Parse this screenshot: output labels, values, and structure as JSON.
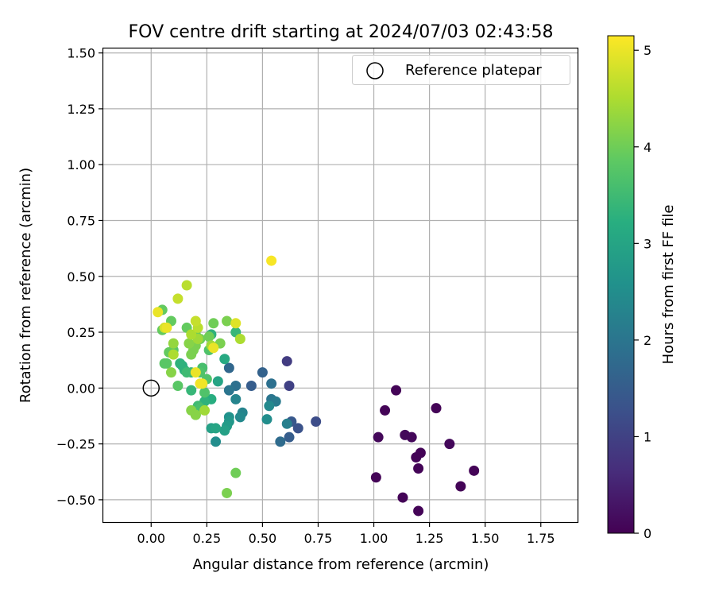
{
  "chart_data": {
    "type": "scatter",
    "title": "FOV centre drift starting at 2024/07/03 02:43:58",
    "xlabel": "Angular distance from reference (arcmin)",
    "ylabel": "Rotation from reference (arcmin)",
    "xlim": [
      -0.215,
      1.915
    ],
    "ylim": [
      -0.6,
      1.52
    ],
    "xticks": [
      0.0,
      0.25,
      0.5,
      0.75,
      1.0,
      1.25,
      1.5,
      1.75
    ],
    "xtick_labels": [
      "0.00",
      "0.25",
      "0.50",
      "0.75",
      "1.00",
      "1.25",
      "1.50",
      "1.75"
    ],
    "yticks": [
      -0.5,
      -0.25,
      0.0,
      0.25,
      0.5,
      0.75,
      1.0,
      1.25,
      1.5
    ],
    "ytick_labels": [
      "−0.50",
      "−0.25",
      "0.00",
      "0.25",
      "0.50",
      "0.75",
      "1.00",
      "1.25",
      "1.50"
    ],
    "grid": true,
    "legend": {
      "position": "top-right",
      "label": "Reference platepar"
    },
    "reference_point": {
      "x": 0.0,
      "y": 0.0
    },
    "colorbar": {
      "label": "Hours from first FF file",
      "colormap": "viridis",
      "range": [
        0,
        5.15
      ],
      "ticks": [
        0,
        1,
        2,
        3,
        4,
        5
      ],
      "tick_labels": [
        "0",
        "1",
        "2",
        "3",
        "4",
        "5"
      ]
    },
    "points": [
      {
        "x": 1.1,
        "y": -0.01,
        "h": 0.05
      },
      {
        "x": 1.05,
        "y": -0.1,
        "h": 0.05
      },
      {
        "x": 1.28,
        "y": -0.09,
        "h": 0.05
      },
      {
        "x": 1.02,
        "y": -0.22,
        "h": 0.1
      },
      {
        "x": 1.14,
        "y": -0.21,
        "h": 0.1
      },
      {
        "x": 1.17,
        "y": -0.22,
        "h": 0.1
      },
      {
        "x": 1.19,
        "y": -0.31,
        "h": 0.05
      },
      {
        "x": 1.21,
        "y": -0.29,
        "h": 0.05
      },
      {
        "x": 1.34,
        "y": -0.25,
        "h": 0.1
      },
      {
        "x": 1.2,
        "y": -0.36,
        "h": 0.05
      },
      {
        "x": 1.01,
        "y": -0.4,
        "h": 0.05
      },
      {
        "x": 1.13,
        "y": -0.49,
        "h": 0.05
      },
      {
        "x": 1.2,
        "y": -0.55,
        "h": 0.05
      },
      {
        "x": 1.39,
        "y": -0.44,
        "h": 0.05
      },
      {
        "x": 1.45,
        "y": -0.37,
        "h": 0.05
      },
      {
        "x": 0.61,
        "y": 0.12,
        "h": 0.9
      },
      {
        "x": 0.62,
        "y": 0.01,
        "h": 1.0
      },
      {
        "x": 0.74,
        "y": -0.15,
        "h": 1.2
      },
      {
        "x": 0.66,
        "y": -0.18,
        "h": 1.3
      },
      {
        "x": 0.63,
        "y": -0.15,
        "h": 1.4
      },
      {
        "x": 0.62,
        "y": -0.22,
        "h": 1.5
      },
      {
        "x": 0.58,
        "y": -0.24,
        "h": 1.8
      },
      {
        "x": 0.5,
        "y": 0.07,
        "h": 1.6
      },
      {
        "x": 0.45,
        "y": 0.01,
        "h": 1.5
      },
      {
        "x": 0.35,
        "y": 0.09,
        "h": 1.7
      },
      {
        "x": 0.38,
        "y": 0.01,
        "h": 1.9
      },
      {
        "x": 0.35,
        "y": -0.01,
        "h": 2.0
      },
      {
        "x": 0.54,
        "y": 0.02,
        "h": 1.9
      },
      {
        "x": 0.54,
        "y": -0.05,
        "h": 2.0
      },
      {
        "x": 0.56,
        "y": -0.06,
        "h": 2.1
      },
      {
        "x": 0.53,
        "y": -0.08,
        "h": 2.4
      },
      {
        "x": 0.52,
        "y": -0.14,
        "h": 2.5
      },
      {
        "x": 0.61,
        "y": -0.16,
        "h": 2.2
      },
      {
        "x": 0.38,
        "y": -0.05,
        "h": 2.3
      },
      {
        "x": 0.41,
        "y": -0.11,
        "h": 2.3
      },
      {
        "x": 0.4,
        "y": -0.13,
        "h": 2.4
      },
      {
        "x": 0.35,
        "y": -0.13,
        "h": 2.6
      },
      {
        "x": 0.35,
        "y": -0.15,
        "h": 2.7
      },
      {
        "x": 0.34,
        "y": -0.17,
        "h": 2.8
      },
      {
        "x": 0.33,
        "y": -0.19,
        "h": 2.9
      },
      {
        "x": 0.29,
        "y": -0.24,
        "h": 2.5
      },
      {
        "x": 0.27,
        "y": -0.18,
        "h": 2.9
      },
      {
        "x": 0.29,
        "y": -0.18,
        "h": 3.0
      },
      {
        "x": 0.33,
        "y": 0.13,
        "h": 3.1
      },
      {
        "x": 0.3,
        "y": 0.03,
        "h": 3.0
      },
      {
        "x": 0.27,
        "y": -0.05,
        "h": 3.2
      },
      {
        "x": 0.24,
        "y": -0.06,
        "h": 3.3
      },
      {
        "x": 0.27,
        "y": 0.24,
        "h": 3.3
      },
      {
        "x": 0.38,
        "y": 0.25,
        "h": 3.4
      },
      {
        "x": 0.14,
        "y": 0.1,
        "h": 3.2
      },
      {
        "x": 0.13,
        "y": 0.11,
        "h": 3.3
      },
      {
        "x": 0.15,
        "y": 0.08,
        "h": 3.3
      },
      {
        "x": 0.18,
        "y": 0.07,
        "h": 3.4
      },
      {
        "x": 0.18,
        "y": -0.01,
        "h": 3.4
      },
      {
        "x": 0.16,
        "y": 0.07,
        "h": 3.5
      },
      {
        "x": 0.21,
        "y": -0.08,
        "h": 3.5
      },
      {
        "x": 0.2,
        "y": -0.12,
        "h": 3.6
      },
      {
        "x": 0.22,
        "y": -0.09,
        "h": 3.6
      },
      {
        "x": 0.23,
        "y": 0.09,
        "h": 3.6
      },
      {
        "x": 0.24,
        "y": -0.02,
        "h": 3.7
      },
      {
        "x": 0.22,
        "y": 0.07,
        "h": 3.7
      },
      {
        "x": 0.25,
        "y": 0.04,
        "h": 3.7
      },
      {
        "x": 0.26,
        "y": 0.17,
        "h": 3.7
      },
      {
        "x": 0.12,
        "y": 0.01,
        "h": 3.8
      },
      {
        "x": 0.07,
        "y": 0.11,
        "h": 3.8
      },
      {
        "x": 0.06,
        "y": 0.11,
        "h": 3.8
      },
      {
        "x": 0.1,
        "y": 0.17,
        "h": 3.8
      },
      {
        "x": 0.08,
        "y": 0.16,
        "h": 3.9
      },
      {
        "x": 0.05,
        "y": 0.35,
        "h": 3.9
      },
      {
        "x": 0.09,
        "y": 0.3,
        "h": 3.9
      },
      {
        "x": 0.05,
        "y": 0.26,
        "h": 3.9
      },
      {
        "x": 0.16,
        "y": 0.27,
        "h": 3.9
      },
      {
        "x": 0.2,
        "y": 0.24,
        "h": 4.0
      },
      {
        "x": 0.22,
        "y": 0.22,
        "h": 4.0
      },
      {
        "x": 0.26,
        "y": 0.23,
        "h": 4.0
      },
      {
        "x": 0.28,
        "y": 0.29,
        "h": 4.0
      },
      {
        "x": 0.31,
        "y": 0.2,
        "h": 4.1
      },
      {
        "x": 0.34,
        "y": 0.3,
        "h": 4.1
      },
      {
        "x": 0.18,
        "y": 0.15,
        "h": 4.1
      },
      {
        "x": 0.19,
        "y": 0.17,
        "h": 4.1
      },
      {
        "x": 0.2,
        "y": 0.19,
        "h": 4.1
      },
      {
        "x": 0.17,
        "y": 0.2,
        "h": 4.2
      },
      {
        "x": 0.09,
        "y": 0.07,
        "h": 4.2
      },
      {
        "x": 0.18,
        "y": -0.1,
        "h": 4.2
      },
      {
        "x": 0.2,
        "y": -0.12,
        "h": 4.2
      },
      {
        "x": 0.38,
        "y": -0.38,
        "h": 4.0
      },
      {
        "x": 0.34,
        "y": -0.47,
        "h": 4.1
      },
      {
        "x": 0.24,
        "y": -0.1,
        "h": 4.4
      },
      {
        "x": 0.1,
        "y": 0.2,
        "h": 4.3
      },
      {
        "x": 0.21,
        "y": 0.22,
        "h": 4.4
      },
      {
        "x": 0.18,
        "y": 0.24,
        "h": 4.5
      },
      {
        "x": 0.27,
        "y": 0.19,
        "h": 4.4
      },
      {
        "x": 0.4,
        "y": 0.22,
        "h": 4.5
      },
      {
        "x": 0.1,
        "y": 0.15,
        "h": 4.5
      },
      {
        "x": 0.21,
        "y": 0.27,
        "h": 4.6
      },
      {
        "x": 0.16,
        "y": 0.46,
        "h": 4.6
      },
      {
        "x": 0.12,
        "y": 0.4,
        "h": 4.7
      },
      {
        "x": 0.2,
        "y": 0.3,
        "h": 4.7
      },
      {
        "x": 0.06,
        "y": 0.27,
        "h": 4.8
      },
      {
        "x": 0.38,
        "y": 0.29,
        "h": 4.9
      },
      {
        "x": 0.03,
        "y": 0.34,
        "h": 5.0
      },
      {
        "x": 0.07,
        "y": 0.27,
        "h": 5.0
      },
      {
        "x": 0.28,
        "y": 0.18,
        "h": 5.0
      },
      {
        "x": 0.2,
        "y": 0.07,
        "h": 5.0
      },
      {
        "x": 0.22,
        "y": 0.02,
        "h": 5.05
      },
      {
        "x": 0.23,
        "y": 0.02,
        "h": 5.05
      },
      {
        "x": 0.54,
        "y": 0.57,
        "h": 5.1
      }
    ]
  }
}
